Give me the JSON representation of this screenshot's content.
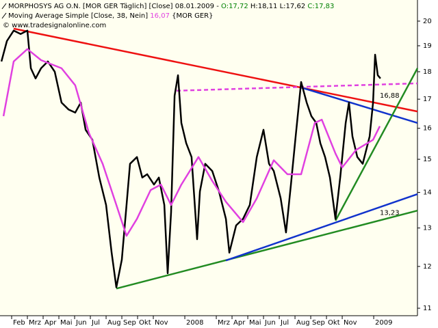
{
  "chart_data": {
    "type": "line",
    "header": [
      "MORPHOSYS AG O.N. [MOR GER  Täglich] [Close] 08.01.2009 -",
      "O:17,72",
      "H:18,11",
      "L:17,62",
      "C:17,83"
    ],
    "source": "© www.tradesignalonline.com",
    "log_y": true,
    "xlim": [
      0.26,
      26.78
    ],
    "ylim": [
      10.83,
      20.9
    ],
    "yticks": [
      11,
      12,
      13,
      14,
      15,
      16,
      17,
      18,
      19,
      20
    ],
    "xticks": [
      {
        "value": 1,
        "label": "Feb"
      },
      {
        "value": 2,
        "label": "Mrz"
      },
      {
        "value": 3,
        "label": "Apr"
      },
      {
        "value": 4,
        "label": "Mai"
      },
      {
        "value": 5,
        "label": "Jun"
      },
      {
        "value": 6,
        "label": "Jul"
      },
      {
        "value": 7,
        "label": "Aug"
      },
      {
        "value": 8,
        "label": "Sep"
      },
      {
        "value": 9,
        "label": "Okt"
      },
      {
        "value": 10,
        "label": "Nov"
      },
      {
        "value": 12,
        "label": "2008"
      },
      {
        "value": 14,
        "label": "Mrz"
      },
      {
        "value": 15,
        "label": "Apr"
      },
      {
        "value": 16,
        "label": "Mai"
      },
      {
        "value": 17,
        "label": "Jun"
      },
      {
        "value": 18,
        "label": "Jul"
      },
      {
        "value": 19,
        "label": "Aug"
      },
      {
        "value": 20,
        "label": "Sep"
      },
      {
        "value": 21,
        "label": "Okt"
      },
      {
        "value": 22,
        "label": "Nov"
      },
      {
        "value": 24,
        "label": "2009"
      }
    ],
    "series": [
      {
        "name": "MORPHOSYS AG O.N. [MOR GER  Täglich] [Close] 08.01.2009",
        "color": "#000000",
        "x": [
          0.35,
          0.7,
          1.13,
          1.57,
          2.0,
          2.22,
          2.52,
          2.87,
          3.3,
          3.74,
          4.17,
          4.61,
          5.04,
          5.39,
          5.7,
          6.13,
          6.57,
          7.0,
          7.35,
          7.65,
          8.0,
          8.3,
          8.52,
          8.96,
          9.3,
          9.61,
          10.04,
          10.35,
          10.7,
          10.91,
          11.13,
          11.35,
          11.57,
          11.78,
          12.09,
          12.43,
          12.78,
          12.96,
          13.3,
          13.74,
          14.17,
          14.61,
          14.83,
          15.26,
          15.7,
          16.13,
          16.57,
          17.0,
          17.35,
          17.65,
          18.09,
          18.43,
          18.74,
          19.04,
          19.39,
          19.74,
          20.04,
          20.35,
          20.61,
          20.91,
          21.22,
          21.57,
          21.87,
          22.22,
          22.43,
          22.65,
          22.96,
          23.3,
          23.74,
          23.96,
          24.09,
          24.26,
          24.43
        ],
        "values": [
          18.39,
          19.19,
          19.61,
          19.47,
          19.61,
          18.13,
          17.75,
          18.13,
          18.39,
          18.0,
          16.88,
          16.64,
          16.53,
          16.88,
          15.95,
          15.62,
          14.44,
          13.64,
          12.35,
          11.49,
          12.17,
          13.64,
          14.86,
          15.07,
          14.44,
          14.54,
          14.23,
          14.44,
          13.64,
          11.83,
          13.44,
          17.12,
          17.87,
          16.18,
          15.51,
          15.07,
          12.7,
          14.03,
          14.86,
          14.64,
          14.03,
          13.25,
          12.35,
          13.07,
          13.25,
          13.64,
          15.07,
          15.95,
          14.86,
          14.64,
          13.83,
          12.88,
          14.23,
          15.73,
          17.62,
          16.88,
          16.41,
          16.18,
          15.51,
          15.07,
          14.44,
          13.25,
          14.44,
          16.18,
          16.88,
          15.73,
          15.07,
          14.86,
          15.73,
          16.88,
          18.65,
          17.87,
          17.75
        ]
      },
      {
        "name": "Moving Average Simple [Close, 38, Nein]",
        "color": "#e040e0",
        "value_label": "16,07",
        "suffix": "{MOR GER}",
        "x": [
          0.48,
          1.13,
          2.0,
          2.87,
          4.17,
          5.04,
          5.91,
          6.78,
          7.65,
          8.3,
          8.96,
          9.83,
          10.48,
          11.13,
          11.78,
          12.87,
          13.74,
          14.61,
          15.7,
          16.57,
          17.65,
          18.52,
          19.39,
          20.26,
          20.7,
          21.57,
          22.0,
          22.87,
          23.96,
          24.39
        ],
        "values": [
          16.41,
          18.39,
          18.87,
          18.44,
          18.13,
          17.5,
          15.84,
          14.86,
          13.64,
          12.79,
          13.25,
          14.07,
          14.23,
          13.64,
          14.23,
          15.07,
          14.34,
          13.73,
          13.16,
          13.83,
          14.97,
          14.54,
          14.54,
          16.18,
          16.29,
          15.18,
          14.75,
          15.29,
          15.62,
          16.07
        ]
      }
    ],
    "trendlines": [
      {
        "color": "#ee1111",
        "dashed": false,
        "x": [
          1.13,
          26.78
        ],
        "y": [
          19.69,
          16.57
        ]
      },
      {
        "color": "#1133cc",
        "dashed": false,
        "x": [
          19.39,
          26.78
        ],
        "y": [
          17.42,
          16.18
        ]
      },
      {
        "color": "#e040e0",
        "dashed": true,
        "x": [
          11.48,
          26.78
        ],
        "y": [
          17.3,
          17.57
        ]
      },
      {
        "color": "#228b22",
        "dashed": false,
        "x": [
          7.65,
          26.78
        ],
        "y": [
          11.46,
          13.48
        ]
      },
      {
        "color": "#1133cc",
        "dashed": false,
        "x": [
          14.61,
          26.78
        ],
        "y": [
          12.15,
          13.95
        ]
      },
      {
        "color": "#228b22",
        "dashed": false,
        "x": [
          21.57,
          26.78
        ],
        "y": [
          13.2,
          18.13
        ]
      }
    ],
    "annotations": [
      {
        "value": 16.88,
        "label": "16,88",
        "color": "#cc1111"
      },
      {
        "value": 13.23,
        "label": "13,23",
        "color": "#228b22"
      }
    ]
  }
}
